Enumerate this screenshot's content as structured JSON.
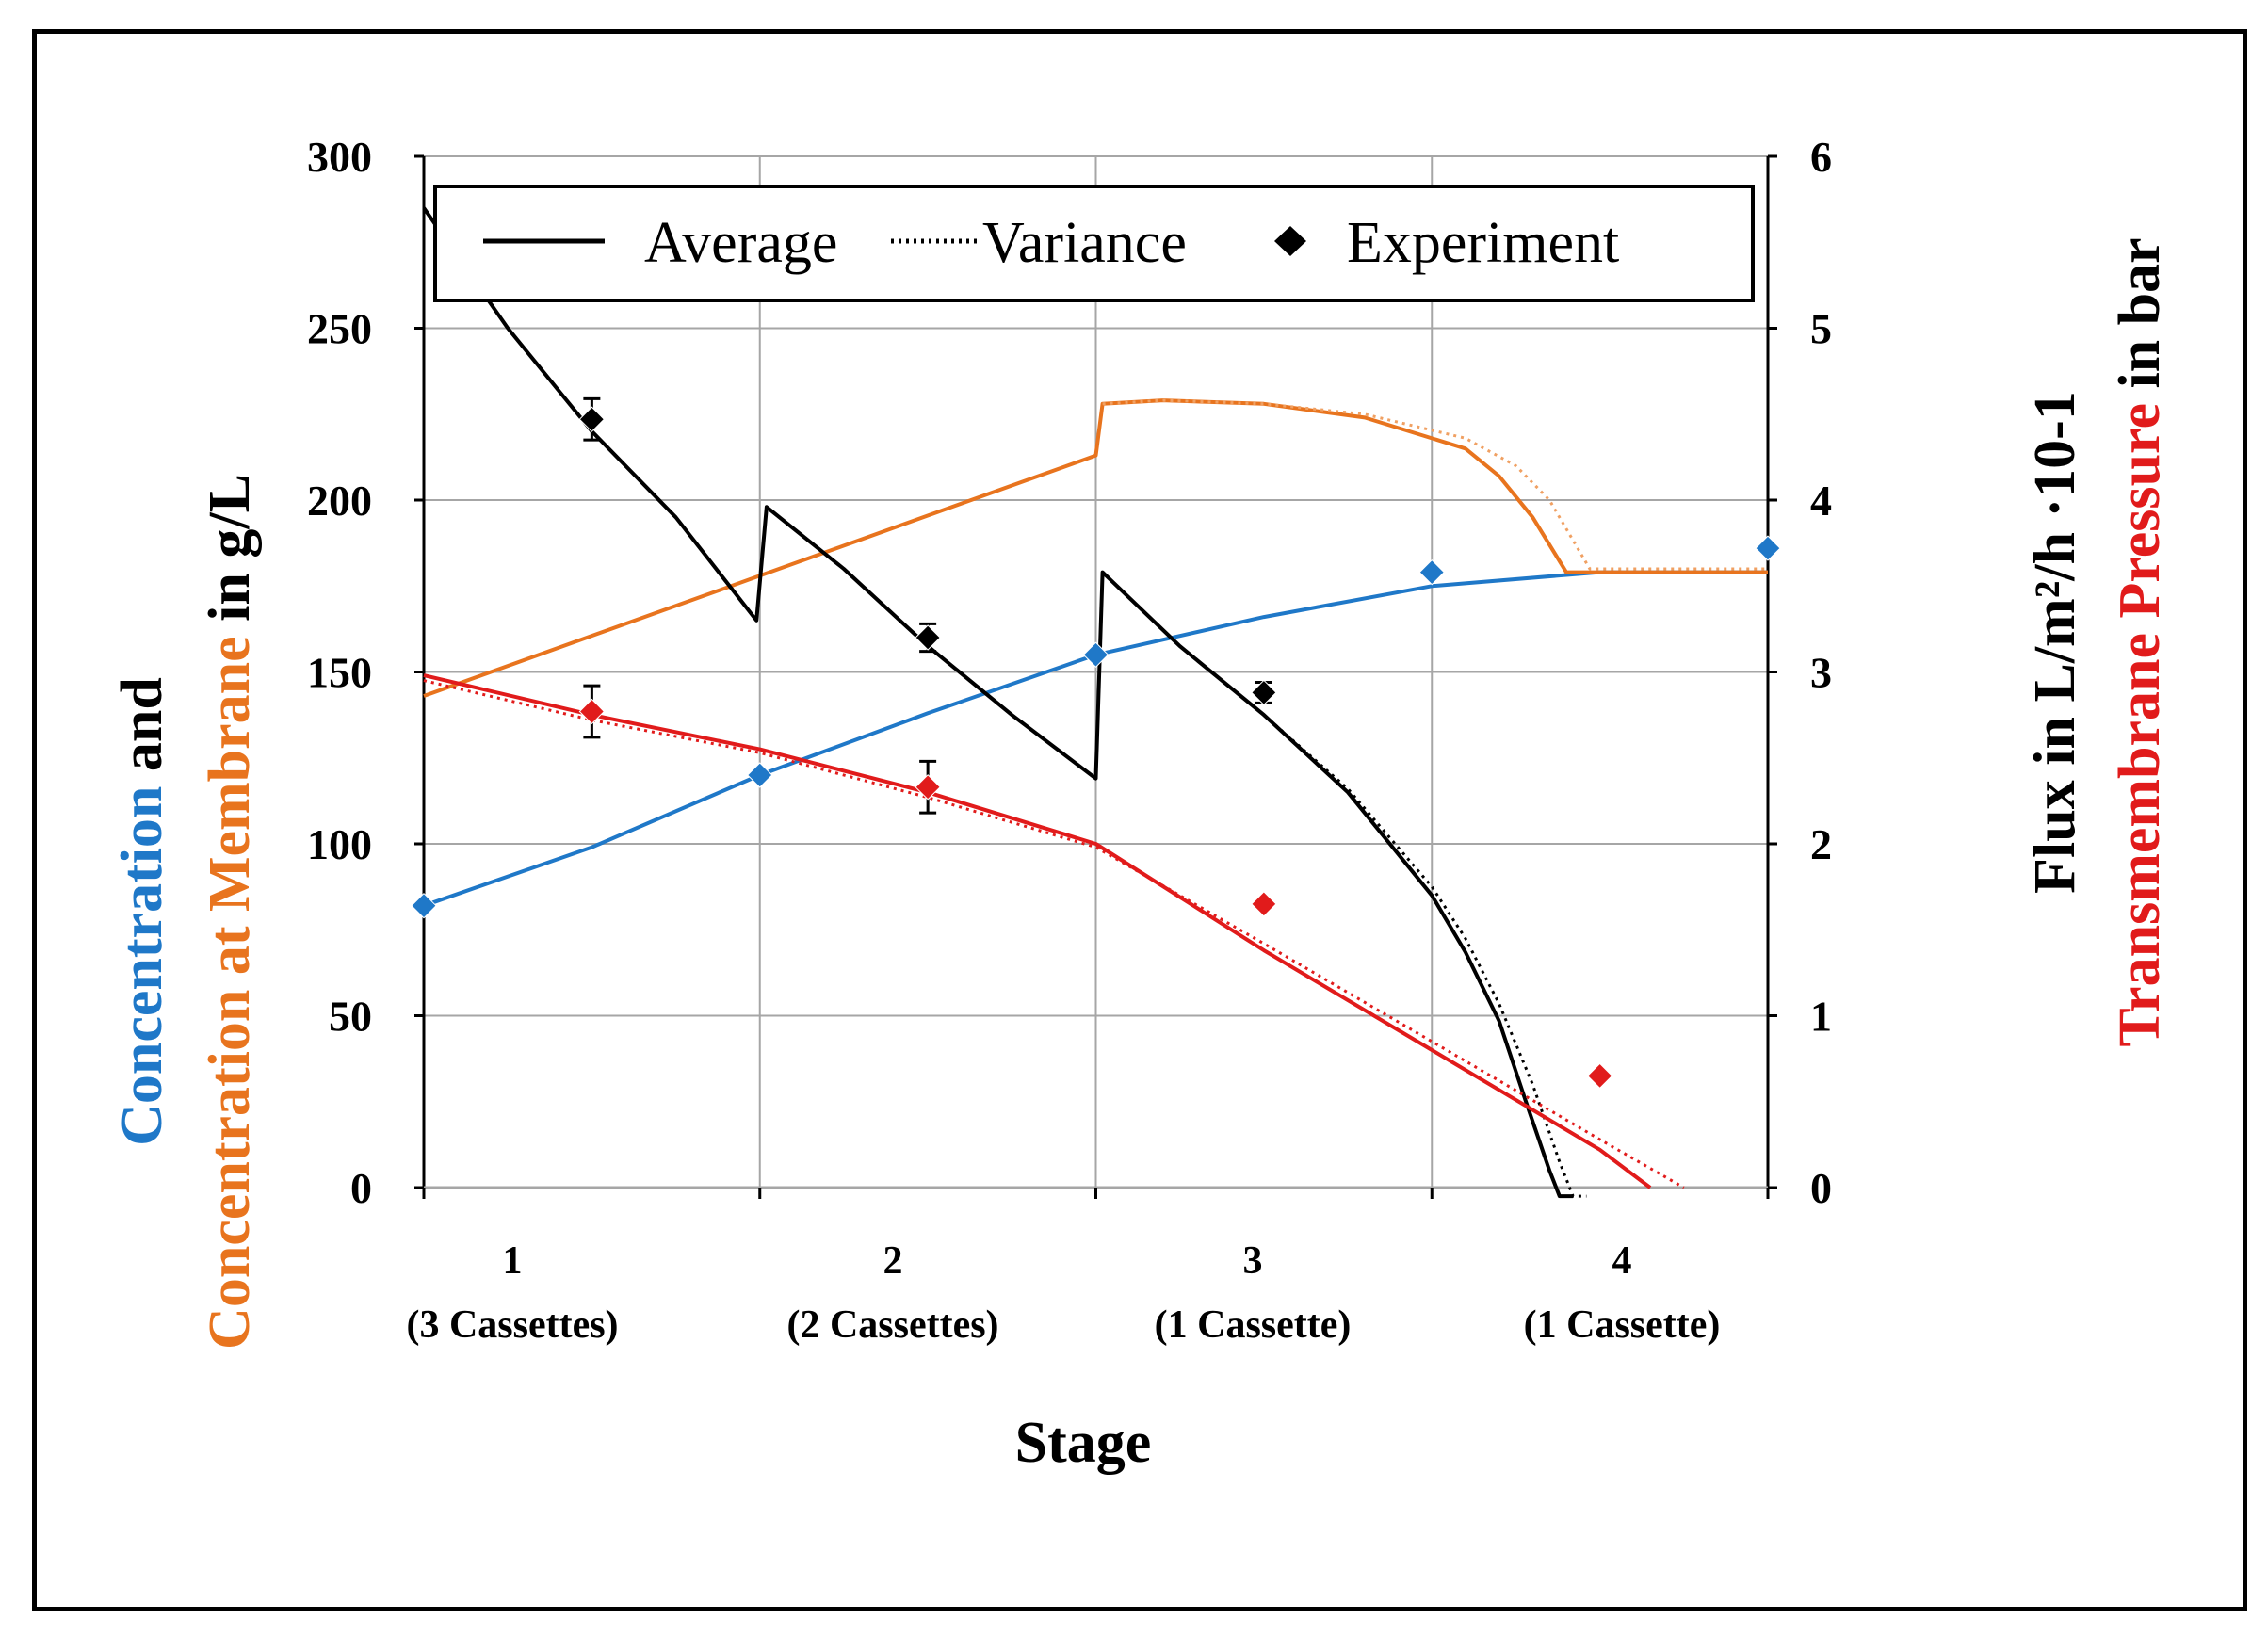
{
  "colors": {
    "blue": "#1f78c8",
    "orange": "#e8741e",
    "orange_light": "#f0a062",
    "black": "#000000",
    "red": "#e11b1b",
    "grid": "#a6a6a6"
  },
  "chart_data": {
    "type": "line",
    "xlabel": "Stage",
    "stage_labels": [
      {
        "num": "1",
        "desc": "(3 Cassettes)"
      },
      {
        "num": "2",
        "desc": "(2 Cassettes)"
      },
      {
        "num": "3",
        "desc": "(1 Cassette)"
      },
      {
        "num": "4",
        "desc": "(1 Cassette)"
      }
    ],
    "x_range": [
      0,
      4
    ],
    "left_axis": {
      "range": [
        0,
        300
      ],
      "ticks": [
        "0",
        "50",
        "100",
        "150",
        "200",
        "250",
        "300"
      ],
      "title_line1": [
        {
          "text": "Concentration",
          "color": "#1f78c8"
        },
        {
          "text": " and",
          "color": "#000000"
        }
      ],
      "title_line2": [
        {
          "text": "Concentration at Membrane",
          "color": "#e8741e"
        },
        {
          "text": "  in  g/L",
          "color": "#000000"
        }
      ]
    },
    "right_axis": {
      "range": [
        0,
        6
      ],
      "ticks": [
        "0",
        "1",
        "2",
        "3",
        "4",
        "5",
        "6"
      ],
      "title_line1": [
        {
          "text": "Flux in  L/m²/h ·10-1",
          "color": "#000000"
        }
      ],
      "title_line2": [
        {
          "text": "Transmembrane Pressure",
          "color": "#e11b1b"
        },
        {
          "text": " in bar",
          "color": "#000000"
        }
      ]
    },
    "legend": {
      "placement": "top",
      "items": [
        {
          "label": "Average",
          "style": "solid"
        },
        {
          "label": "Variance",
          "style": "dotted"
        },
        {
          "label": "Experiment",
          "style": "diamond"
        }
      ]
    },
    "series": [
      {
        "name": "Concentration (model)",
        "axis": "left",
        "color": "#1f78c8",
        "x": [
          0,
          0.5,
          1.0,
          1.5,
          2.0,
          2.5,
          3.0,
          3.5,
          4.0
        ],
        "y": [
          82,
          99,
          120,
          138,
          155,
          166,
          175,
          179,
          179
        ]
      },
      {
        "name": "Concentration at Membrane (model)",
        "axis": "left",
        "color": "#e8741e",
        "x": [
          0,
          1.0,
          2.0,
          2.02,
          2.2,
          2.5,
          2.8,
          3.1,
          3.2,
          3.3,
          3.4,
          4.0
        ],
        "y": [
          143,
          178,
          213,
          228,
          229,
          228,
          224,
          215,
          207,
          195,
          179,
          179
        ]
      },
      {
        "name": "Concentration at Membrane (variance)",
        "axis": "left",
        "color": "#f0a062",
        "dotted": true,
        "x": [
          2.02,
          2.2,
          2.5,
          2.8,
          3.1,
          3.25,
          3.35,
          3.47,
          4.0
        ],
        "y": [
          228,
          229,
          228,
          225,
          218,
          210,
          200,
          180,
          180
        ]
      },
      {
        "name": "Flux (model)",
        "axis": "right",
        "color": "#000000",
        "x": [
          0,
          0.25,
          0.5,
          0.75,
          0.99,
          1.02,
          1.25,
          1.5,
          1.75,
          2.0,
          2.02,
          2.25,
          2.5,
          2.75,
          3.0,
          3.1,
          3.2,
          3.28,
          3.35,
          3.38,
          3.42
        ],
        "y": [
          5.7,
          5.0,
          4.4,
          3.9,
          3.3,
          3.96,
          3.6,
          3.15,
          2.75,
          2.38,
          3.58,
          3.15,
          2.75,
          2.3,
          1.7,
          1.37,
          0.97,
          0.5,
          0.1,
          -0.05,
          -0.05
        ]
      },
      {
        "name": "Flux (variance)",
        "axis": "right",
        "color": "#000000",
        "dotted": true,
        "x": [
          2.5,
          2.75,
          3.0,
          3.1,
          3.2,
          3.3,
          3.38,
          3.42,
          3.46
        ],
        "y": [
          2.75,
          2.32,
          1.75,
          1.45,
          1.07,
          0.6,
          0.15,
          -0.05,
          -0.05
        ]
      },
      {
        "name": "Transmembrane Pressure (model)",
        "axis": "right",
        "color": "#e11b1b",
        "x": [
          0,
          0.5,
          1.0,
          1.5,
          2.0,
          2.5,
          3.0,
          3.5,
          3.65
        ],
        "y": [
          2.98,
          2.75,
          2.55,
          2.3,
          2.0,
          1.38,
          0.8,
          0.22,
          0
        ]
      },
      {
        "name": "Transmembrane Pressure (variance)",
        "axis": "right",
        "color": "#e11b1b",
        "dotted": true,
        "x": [
          0,
          0.5,
          1.0,
          1.5,
          2.0,
          2.5,
          3.0,
          3.5,
          3.75
        ],
        "y": [
          2.95,
          2.72,
          2.53,
          2.27,
          1.98,
          1.42,
          0.85,
          0.28,
          0
        ]
      }
    ],
    "experiment_points": [
      {
        "name": "Concentration",
        "axis": "left",
        "color": "#1f78c8",
        "x": [
          0,
          1.0,
          2.0,
          3.0,
          4.0
        ],
        "y": [
          82,
          120,
          155,
          179,
          186
        ],
        "err": [
          0,
          0,
          0,
          0,
          0
        ]
      },
      {
        "name": "Flux",
        "axis": "right",
        "color": "#000000",
        "x": [
          0.5,
          1.5,
          2.5
        ],
        "y": [
          4.47,
          3.2,
          2.88
        ],
        "err": [
          0.12,
          0.08,
          0.06
        ]
      },
      {
        "name": "Transmembrane Pressure",
        "axis": "right",
        "color": "#e11b1b",
        "x": [
          0.5,
          1.5,
          2.5,
          3.5
        ],
        "y": [
          2.77,
          2.33,
          1.65,
          0.65
        ],
        "err": [
          0.15,
          0.15,
          0.0,
          0.0
        ]
      }
    ]
  }
}
